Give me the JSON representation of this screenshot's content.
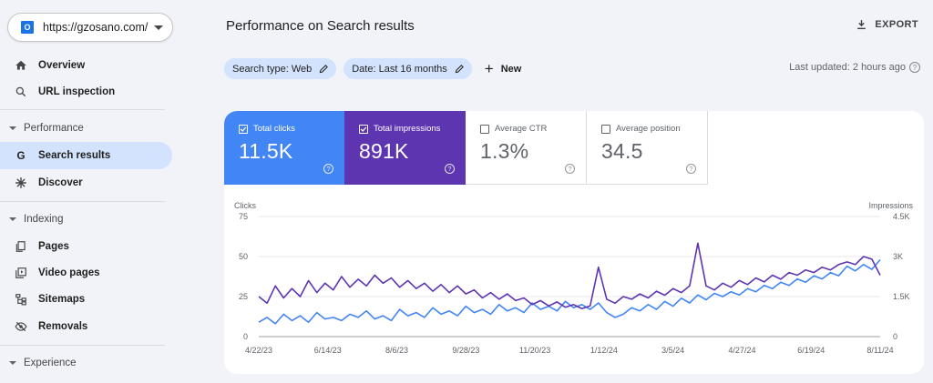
{
  "sidebar": {
    "property": {
      "icon_letter": "O",
      "url": "https://gzosano.com/"
    },
    "items": [
      {
        "label": "Overview",
        "icon": "home-icon"
      },
      {
        "label": "URL inspection",
        "icon": "search-icon"
      }
    ],
    "performance": {
      "section_label": "Performance",
      "items": [
        {
          "label": "Search results",
          "icon": "google-g-icon",
          "active": true
        },
        {
          "label": "Discover",
          "icon": "asterisk-icon"
        }
      ]
    },
    "indexing": {
      "section_label": "Indexing",
      "items": [
        {
          "label": "Pages",
          "icon": "pages-icon"
        },
        {
          "label": "Video pages",
          "icon": "video-pages-icon"
        },
        {
          "label": "Sitemaps",
          "icon": "sitemap-icon"
        },
        {
          "label": "Removals",
          "icon": "removals-icon"
        }
      ]
    },
    "experience": {
      "section_label": "Experience"
    }
  },
  "header": {
    "title": "Performance on Search results",
    "export_label": "EXPORT"
  },
  "filters": {
    "search_type": "Search type: Web",
    "date": "Date: Last 16 months",
    "new_label": "New",
    "last_updated": "Last updated: 2 hours ago"
  },
  "metrics": [
    {
      "label": "Total clicks",
      "value": "11.5K",
      "checked": true,
      "color": "#4285f4"
    },
    {
      "label": "Total impressions",
      "value": "891K",
      "checked": true,
      "color": "#5e35b1"
    },
    {
      "label": "Average CTR",
      "value": "1.3%",
      "checked": false,
      "color": "#00897b"
    },
    {
      "label": "Average position",
      "value": "34.5",
      "checked": false,
      "color": "#e8710a"
    }
  ],
  "chart_data": {
    "type": "line",
    "left_axis_title": "Clicks",
    "right_axis_title": "Impressions",
    "left_ticks": [
      "75",
      "50",
      "25",
      "0"
    ],
    "right_ticks": [
      "4.5K",
      "3K",
      "1.5K",
      "0"
    ],
    "ylim_left": [
      0,
      75
    ],
    "ylim_right": [
      0,
      4500
    ],
    "x_tick_labels": [
      "4/22/23",
      "6/14/23",
      "8/6/23",
      "9/28/23",
      "11/20/23",
      "1/12/24",
      "3/5/24",
      "4/27/24",
      "6/19/24",
      "8/11/24"
    ],
    "series": [
      {
        "name": "Clicks",
        "axis": "left",
        "color": "#4285f4",
        "values": [
          9,
          12,
          8,
          14,
          10,
          13,
          9,
          15,
          11,
          12,
          10,
          14,
          12,
          16,
          11,
          13,
          10,
          17,
          13,
          15,
          12,
          18,
          14,
          16,
          13,
          19,
          15,
          17,
          14,
          20,
          16,
          18,
          15,
          21,
          17,
          19,
          16,
          22,
          18,
          20,
          17,
          21,
          15,
          12,
          14,
          18,
          16,
          20,
          17,
          22,
          19,
          24,
          21,
          26,
          23,
          27,
          25,
          28,
          26,
          30,
          28,
          32,
          30,
          34,
          32,
          36,
          34,
          38,
          36,
          40,
          38,
          44,
          41,
          45,
          42,
          48
        ]
      },
      {
        "name": "Impressions",
        "axis": "right",
        "color": "#5e35b1",
        "values": [
          1500,
          1250,
          1900,
          1450,
          1800,
          1500,
          2100,
          1650,
          2000,
          1750,
          2250,
          1850,
          2150,
          1900,
          2300,
          2000,
          2200,
          1850,
          2100,
          1800,
          2000,
          1700,
          1950,
          1650,
          1900,
          1600,
          1750,
          1450,
          1650,
          1400,
          1600,
          1350,
          1450,
          1200,
          1350,
          1150,
          1300,
          1100,
          1200,
          1050,
          1150,
          2600,
          1400,
          1250,
          1500,
          1400,
          1600,
          1450,
          1700,
          1550,
          1800,
          1650,
          1900,
          3500,
          1900,
          1750,
          2000,
          1850,
          2100,
          1950,
          2200,
          2050,
          2300,
          2150,
          2400,
          2300,
          2500,
          2400,
          2600,
          2500,
          2700,
          2800,
          2700,
          3000,
          2900,
          2300
        ]
      }
    ]
  }
}
